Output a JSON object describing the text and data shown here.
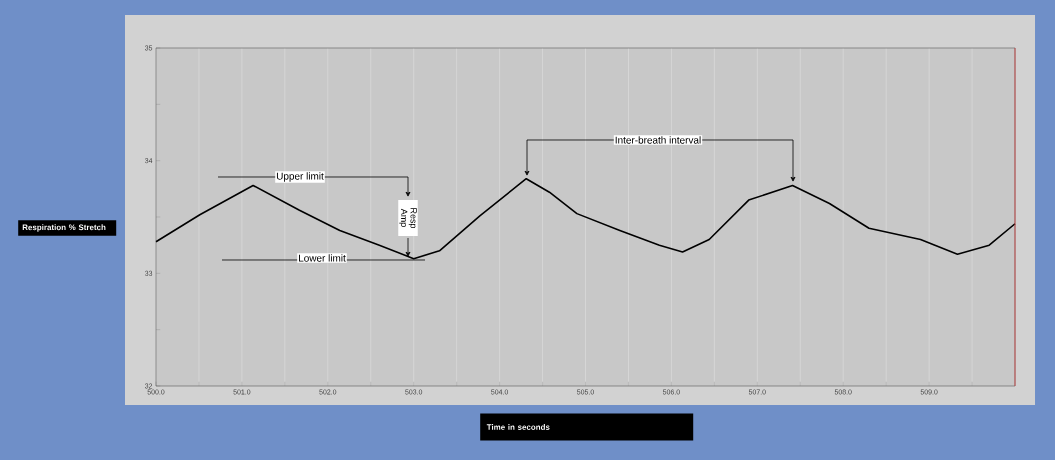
{
  "chart_data": {
    "type": "line",
    "xlabel": "Time in seconds",
    "ylabel": "Respiration % Stretch",
    "xlim": [
      500,
      510
    ],
    "ylim": [
      32,
      35
    ],
    "xticks": [
      {
        "value": 500,
        "label": "500.0"
      },
      {
        "value": 500.5,
        "label": null
      },
      {
        "value": 501,
        "label": "501.0"
      },
      {
        "value": 501.5,
        "label": null
      },
      {
        "value": 502,
        "label": "502.0"
      },
      {
        "value": 502.5,
        "label": null
      },
      {
        "value": 503,
        "label": "503.0"
      },
      {
        "value": 503.5,
        "label": null
      },
      {
        "value": 504,
        "label": "504.0"
      },
      {
        "value": 504.5,
        "label": null
      },
      {
        "value": 505,
        "label": "505.0"
      },
      {
        "value": 505.5,
        "label": null
      },
      {
        "value": 506,
        "label": "506.0"
      },
      {
        "value": 506.5,
        "label": null
      },
      {
        "value": 507,
        "label": "507.0"
      },
      {
        "value": 507.5,
        "label": null
      },
      {
        "value": 508,
        "label": "508.0"
      },
      {
        "value": 508.5,
        "label": null
      },
      {
        "value": 509,
        "label": "509.0"
      },
      {
        "value": 509.5,
        "label": null
      }
    ],
    "yticks": [
      32,
      {
        "value": 32.5,
        "label": null
      },
      33,
      {
        "value": 33.5,
        "label": null
      },
      34,
      {
        "value": 34.5,
        "label": null
      },
      35
    ],
    "grid": "x",
    "series": [
      {
        "color": "#000000",
        "x": [
          500.0,
          500.51,
          501.13,
          501.67,
          502.14,
          502.6,
          503.0,
          503.3,
          503.77,
          504.31,
          504.58,
          504.9,
          505.4,
          505.86,
          506.13,
          506.44,
          506.9,
          507.41,
          507.84,
          508.3,
          508.9,
          509.33,
          509.7,
          510.0
        ],
        "values": [
          33.28,
          33.52,
          33.78,
          33.56,
          33.38,
          33.25,
          33.13,
          33.2,
          33.51,
          33.84,
          33.72,
          33.53,
          33.38,
          33.25,
          33.19,
          33.3,
          33.65,
          33.78,
          33.62,
          33.4,
          33.3,
          33.17,
          33.25,
          33.44
        ]
      }
    ],
    "ref_lines": [
      {
        "axis": "x",
        "value": 510,
        "color": "#d04040"
      }
    ],
    "annotations": [
      "Upper limit",
      "Lower limit",
      "Resp Amp",
      "Inter-breath interval"
    ]
  }
}
